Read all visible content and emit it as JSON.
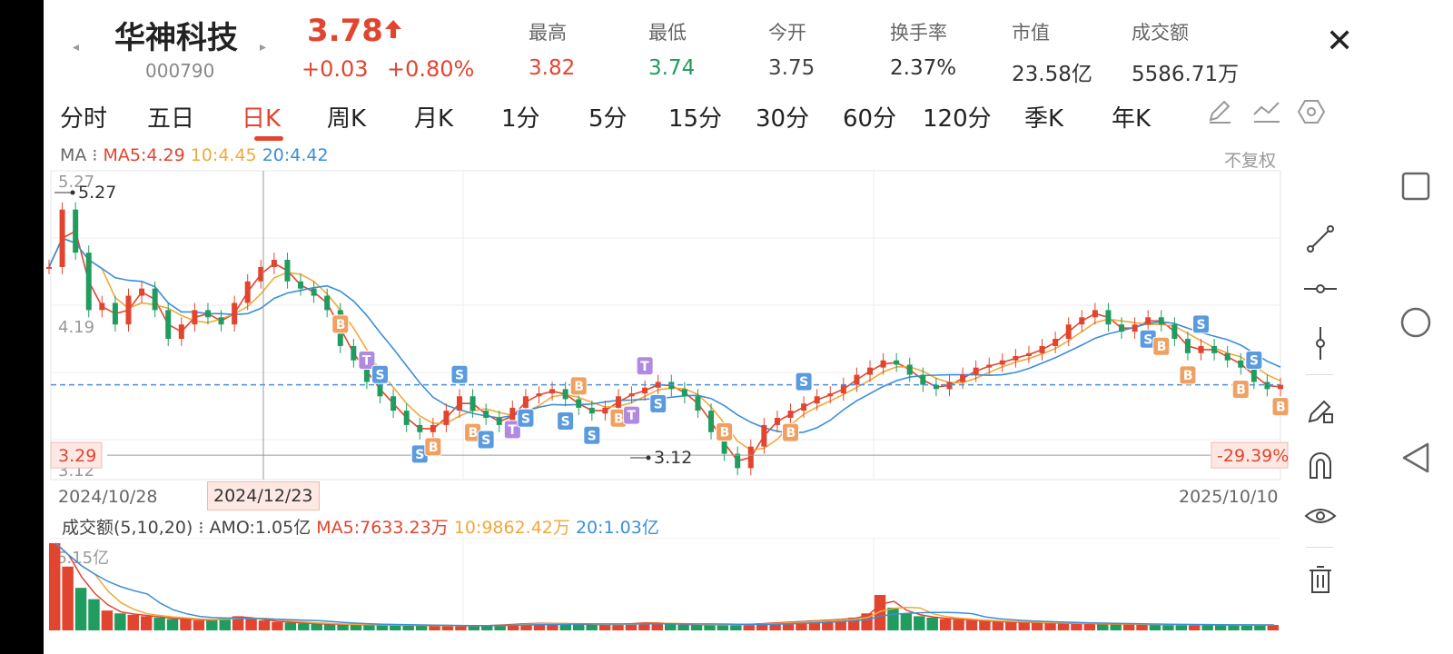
{
  "header": {
    "name": "华神科技",
    "code": "000790",
    "price": "3.78",
    "change": "+0.03",
    "change_pct": "+0.80%",
    "stats": [
      {
        "label": "最高",
        "value": "3.82",
        "color": "#e2452f"
      },
      {
        "label": "最低",
        "value": "3.74",
        "color": "#1f9c5e"
      },
      {
        "label": "今开",
        "value": "3.75",
        "color": "#444444"
      },
      {
        "label": "换手率",
        "value": "2.37%",
        "color": "#333333"
      },
      {
        "label": "市值",
        "value": "23.58亿",
        "color": "#333333"
      },
      {
        "label": "成交额",
        "value": "5586.71万",
        "color": "#333333"
      }
    ]
  },
  "tabs": [
    "分时",
    "五日",
    "日K",
    "周K",
    "月K",
    "1分",
    "5分",
    "15分",
    "30分",
    "60分",
    "120分",
    "季K",
    "年K"
  ],
  "active_tab": "日K",
  "ma_legend": {
    "prefix": "MA",
    "ma5": "MA5:4.29",
    "ma10": "10:4.45",
    "ma20": "20:4.42"
  },
  "adjust_label": "不复权",
  "vol_legend": {
    "prefix": "成交额(5,10,20)",
    "amo": "AMO:1.05亿",
    "ma5": "MA5:7633.23万",
    "ma10": "10:9862.42万",
    "ma20": "20:1.03亿"
  },
  "colors": {
    "up": "#e2452f",
    "down": "#1f9c5e",
    "ma5": "#e2452f",
    "ma10": "#f0a93a",
    "ma20": "#3a8fd8",
    "price_line": "#4a90d9",
    "buy": "#f0a060",
    "sell": "#5a9be0",
    "t": "#b08ae0"
  },
  "chart_data": {
    "type": "candlestick",
    "price_axis_labels": [
      "5.27",
      "4.19",
      "3.29",
      "3.12"
    ],
    "ylim": [
      3.12,
      5.27
    ],
    "x_start": "2024/10/28",
    "x_cursor": "2024/12/23",
    "x_end": "2025/10/10",
    "max_marker": "5.27",
    "min_marker": "3.12",
    "cursor_price": "3.29",
    "cursor_pct": "-29.39%",
    "current_price": 3.78,
    "close_points": [
      4.6,
      5.0,
      4.7,
      4.3,
      4.35,
      4.2,
      4.4,
      4.45,
      4.3,
      4.1,
      4.2,
      4.3,
      4.25,
      4.2,
      4.35,
      4.5,
      4.6,
      4.65,
      4.5,
      4.45,
      4.4,
      4.3,
      4.05,
      3.95,
      3.8,
      3.7,
      3.6,
      3.5,
      3.45,
      3.5,
      3.6,
      3.7,
      3.6,
      3.55,
      3.5,
      3.62,
      3.7,
      3.72,
      3.75,
      3.68,
      3.62,
      3.58,
      3.62,
      3.7,
      3.72,
      3.76,
      3.8,
      3.75,
      3.7,
      3.6,
      3.45,
      3.3,
      3.2,
      3.35,
      3.5,
      3.55,
      3.6,
      3.65,
      3.7,
      3.72,
      3.78,
      3.85,
      3.9,
      3.95,
      3.92,
      3.85,
      3.78,
      3.75,
      3.8,
      3.85,
      3.9,
      3.92,
      3.95,
      3.98,
      4.0,
      4.05,
      4.1,
      4.2,
      4.25,
      4.3,
      4.2,
      4.15,
      4.2,
      4.25,
      4.2,
      4.1,
      4.0,
      4.05,
      4.0,
      3.95,
      3.9,
      3.8,
      3.75,
      3.78
    ],
    "volume_axis_label": "6.15亿",
    "volume_points": [
      6.15,
      4.5,
      3.0,
      2.2,
      1.4,
      1.2,
      1.1,
      1.0,
      0.9,
      0.8,
      0.8,
      0.7,
      0.75,
      0.9,
      1.0,
      0.8,
      0.7,
      0.6,
      0.55,
      0.5,
      0.45,
      0.45,
      0.4,
      0.4,
      0.38,
      0.38,
      0.35,
      0.35,
      0.35,
      0.33,
      0.33,
      0.32,
      0.32,
      0.35,
      0.4,
      0.45,
      0.5,
      0.5,
      0.5,
      0.45,
      0.45,
      0.4,
      0.4,
      0.45,
      0.5,
      0.55,
      0.5,
      0.45,
      0.4,
      0.4,
      0.38,
      0.4,
      0.42,
      0.45,
      0.5,
      0.55,
      0.6,
      0.65,
      0.7,
      0.75,
      0.8,
      0.9,
      1.2,
      2.5,
      1.6,
      1.2,
      1.0,
      0.9,
      0.8,
      0.75,
      0.7,
      0.65,
      0.6,
      0.6,
      0.55,
      0.55,
      0.5,
      0.5,
      0.5,
      0.45,
      0.45,
      0.45,
      0.45,
      0.4,
      0.4,
      0.4,
      0.4,
      0.4,
      0.38,
      0.38,
      0.38,
      0.38,
      0.38,
      0.38
    ],
    "signals": [
      {
        "t": "B",
        "i": 22,
        "side": "above"
      },
      {
        "t": "T",
        "i": 24,
        "side": "above"
      },
      {
        "t": "S",
        "i": 25,
        "side": "above"
      },
      {
        "t": "S",
        "i": 28,
        "side": "below"
      },
      {
        "t": "B",
        "i": 29,
        "side": "below"
      },
      {
        "t": "S",
        "i": 31,
        "side": "above"
      },
      {
        "t": "B",
        "i": 32,
        "side": "below"
      },
      {
        "t": "S",
        "i": 33,
        "side": "below"
      },
      {
        "t": "T",
        "i": 35,
        "side": "below"
      },
      {
        "t": "S",
        "i": 36,
        "side": "below"
      },
      {
        "t": "S",
        "i": 39,
        "side": "below"
      },
      {
        "t": "B",
        "i": 40,
        "side": "above"
      },
      {
        "t": "S",
        "i": 41,
        "side": "below"
      },
      {
        "t": "B",
        "i": 43,
        "side": "below"
      },
      {
        "t": "T",
        "i": 44,
        "side": "below"
      },
      {
        "t": "T",
        "i": 45,
        "side": "above"
      },
      {
        "t": "S",
        "i": 46,
        "side": "below"
      },
      {
        "t": "B",
        "i": 51,
        "side": "above"
      },
      {
        "t": "B",
        "i": 56,
        "side": "below"
      },
      {
        "t": "S",
        "i": 57,
        "side": "above"
      },
      {
        "t": "S",
        "i": 83,
        "side": "below"
      },
      {
        "t": "B",
        "i": 84,
        "side": "below"
      },
      {
        "t": "B",
        "i": 86,
        "side": "below"
      },
      {
        "t": "S",
        "i": 87,
        "side": "above"
      },
      {
        "t": "B",
        "i": 90,
        "side": "below"
      },
      {
        "t": "S",
        "i": 91,
        "side": "above"
      },
      {
        "t": "B",
        "i": 93,
        "side": "below"
      }
    ]
  }
}
